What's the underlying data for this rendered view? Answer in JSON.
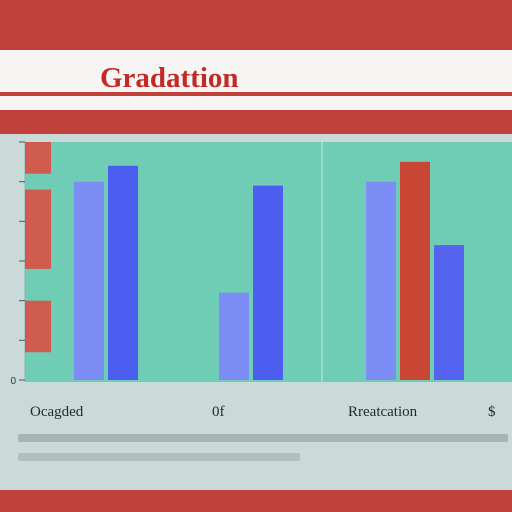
{
  "title": "Gradattion",
  "chart_data": {
    "type": "bar",
    "title": "Gradattion",
    "categories": [
      "Ocagded",
      "0f",
      "Rreatcation",
      "$"
    ],
    "ylim": [
      0,
      6
    ],
    "y_ticks": [
      0,
      1,
      2,
      3,
      4,
      5,
      6
    ],
    "y_tick_labels": [
      "0",
      "",
      "",
      "",
      "",
      "",
      ""
    ],
    "series": [
      {
        "color": "#7c8ef5",
        "values": [
          5.0,
          2.2,
          5.0,
          null
        ]
      },
      {
        "color": "#4b5ef0",
        "values": [
          5.4,
          4.9,
          null,
          null
        ]
      },
      {
        "color": "#c94634",
        "values": [
          null,
          null,
          5.5,
          null
        ]
      },
      {
        "color": "#5464f0",
        "values": [
          null,
          null,
          3.4,
          null
        ]
      }
    ],
    "left_markers": {
      "color": "#cf5a4e",
      "ranges": [
        [
          5.2,
          6.0
        ],
        [
          2.8,
          4.8
        ],
        [
          0.7,
          2.0
        ]
      ]
    },
    "grid": false,
    "legend": "none"
  },
  "colors": {
    "band": "#c0413a",
    "plot_bg": "#6fcdb6",
    "page_bg": "#c9dad8",
    "title": "#c12a26"
  }
}
